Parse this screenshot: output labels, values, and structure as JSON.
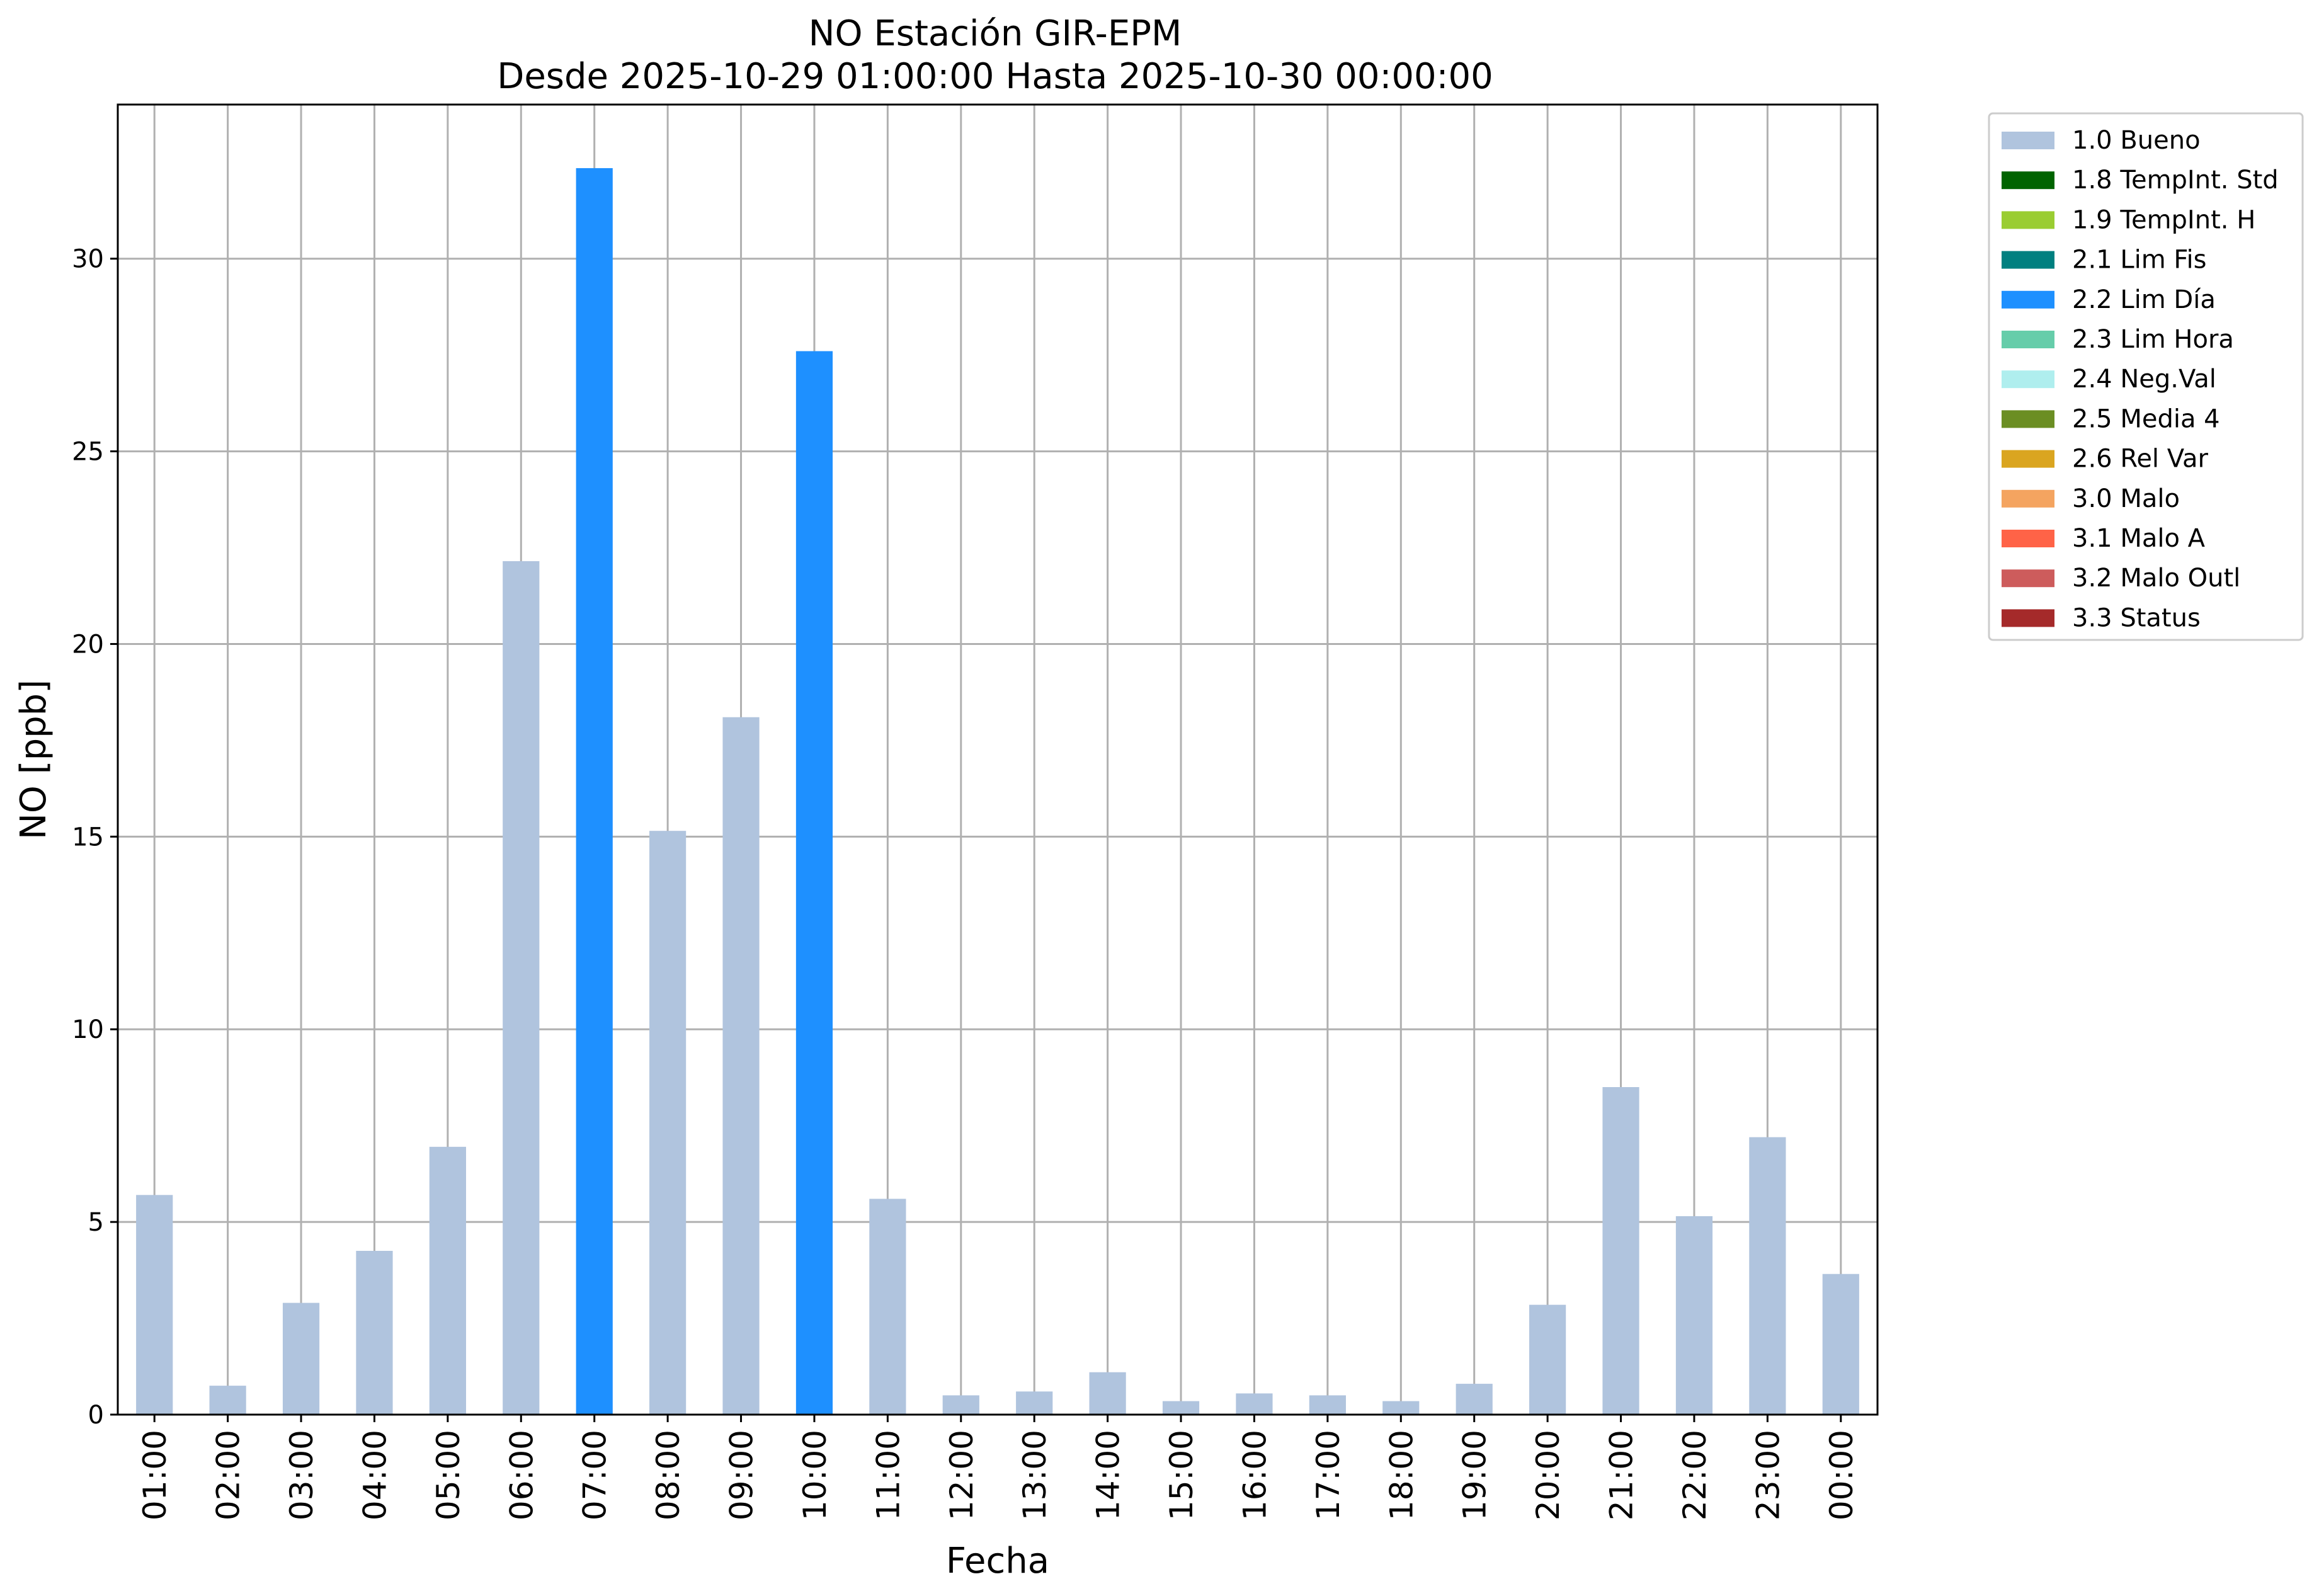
{
  "chart_data": {
    "type": "bar",
    "title": "NO Estación GIR-EPM",
    "subtitle": "Desde 2025-10-29 01:00:00 Hasta 2025-10-30 00:00:00",
    "xlabel": "Fecha",
    "ylabel": "NO [ppb]",
    "ylim": [
      0,
      34
    ],
    "yticks": [
      0,
      5,
      10,
      15,
      20,
      25,
      30
    ],
    "grid": true,
    "legend_position": "outside-top-right",
    "categories": [
      "01:00",
      "02:00",
      "03:00",
      "04:00",
      "05:00",
      "06:00",
      "07:00",
      "08:00",
      "09:00",
      "10:00",
      "11:00",
      "12:00",
      "13:00",
      "14:00",
      "15:00",
      "16:00",
      "17:00",
      "18:00",
      "19:00",
      "20:00",
      "21:00",
      "22:00",
      "23:00",
      "00:00"
    ],
    "values": [
      5.7,
      0.75,
      2.9,
      4.25,
      6.95,
      22.15,
      32.35,
      15.15,
      18.1,
      27.6,
      5.6,
      0.5,
      0.6,
      1.1,
      0.35,
      0.55,
      0.5,
      0.35,
      0.8,
      2.85,
      8.5,
      5.15,
      7.2,
      3.65
    ],
    "flags": [
      "1.0 Bueno",
      "1.0 Bueno",
      "1.0 Bueno",
      "1.0 Bueno",
      "1.0 Bueno",
      "1.0 Bueno",
      "2.2 Lim Día",
      "1.0 Bueno",
      "1.0 Bueno",
      "2.2 Lim Día",
      "1.0 Bueno",
      "1.0 Bueno",
      "1.0 Bueno",
      "1.0 Bueno",
      "1.0 Bueno",
      "1.0 Bueno",
      "1.0 Bueno",
      "1.0 Bueno",
      "1.0 Bueno",
      "1.0 Bueno",
      "1.0 Bueno",
      "1.0 Bueno",
      "1.0 Bueno",
      "1.0 Bueno"
    ],
    "legend": [
      {
        "label": "1.0 Bueno",
        "color": "#b0c4de"
      },
      {
        "label": "1.8 TempInt. Std",
        "color": "#006400"
      },
      {
        "label": "1.9 TempInt. H",
        "color": "#9acd32"
      },
      {
        "label": "2.1 Lim Fis",
        "color": "#008080"
      },
      {
        "label": "2.2 Lim Día",
        "color": "#1e90ff"
      },
      {
        "label": "2.3 Lim Hora",
        "color": "#66cdaa"
      },
      {
        "label": "2.4 Neg.Val",
        "color": "#afeeee"
      },
      {
        "label": "2.5 Media 4",
        "color": "#6b8e23"
      },
      {
        "label": "2.6 Rel Var",
        "color": "#daa520"
      },
      {
        "label": "3.0 Malo",
        "color": "#f4a460"
      },
      {
        "label": "3.1 Malo A",
        "color": "#ff6347"
      },
      {
        "label": "3.2 Malo Outl",
        "color": "#cd5c5c"
      },
      {
        "label": "3.3 Status",
        "color": "#a52a2a"
      }
    ]
  }
}
